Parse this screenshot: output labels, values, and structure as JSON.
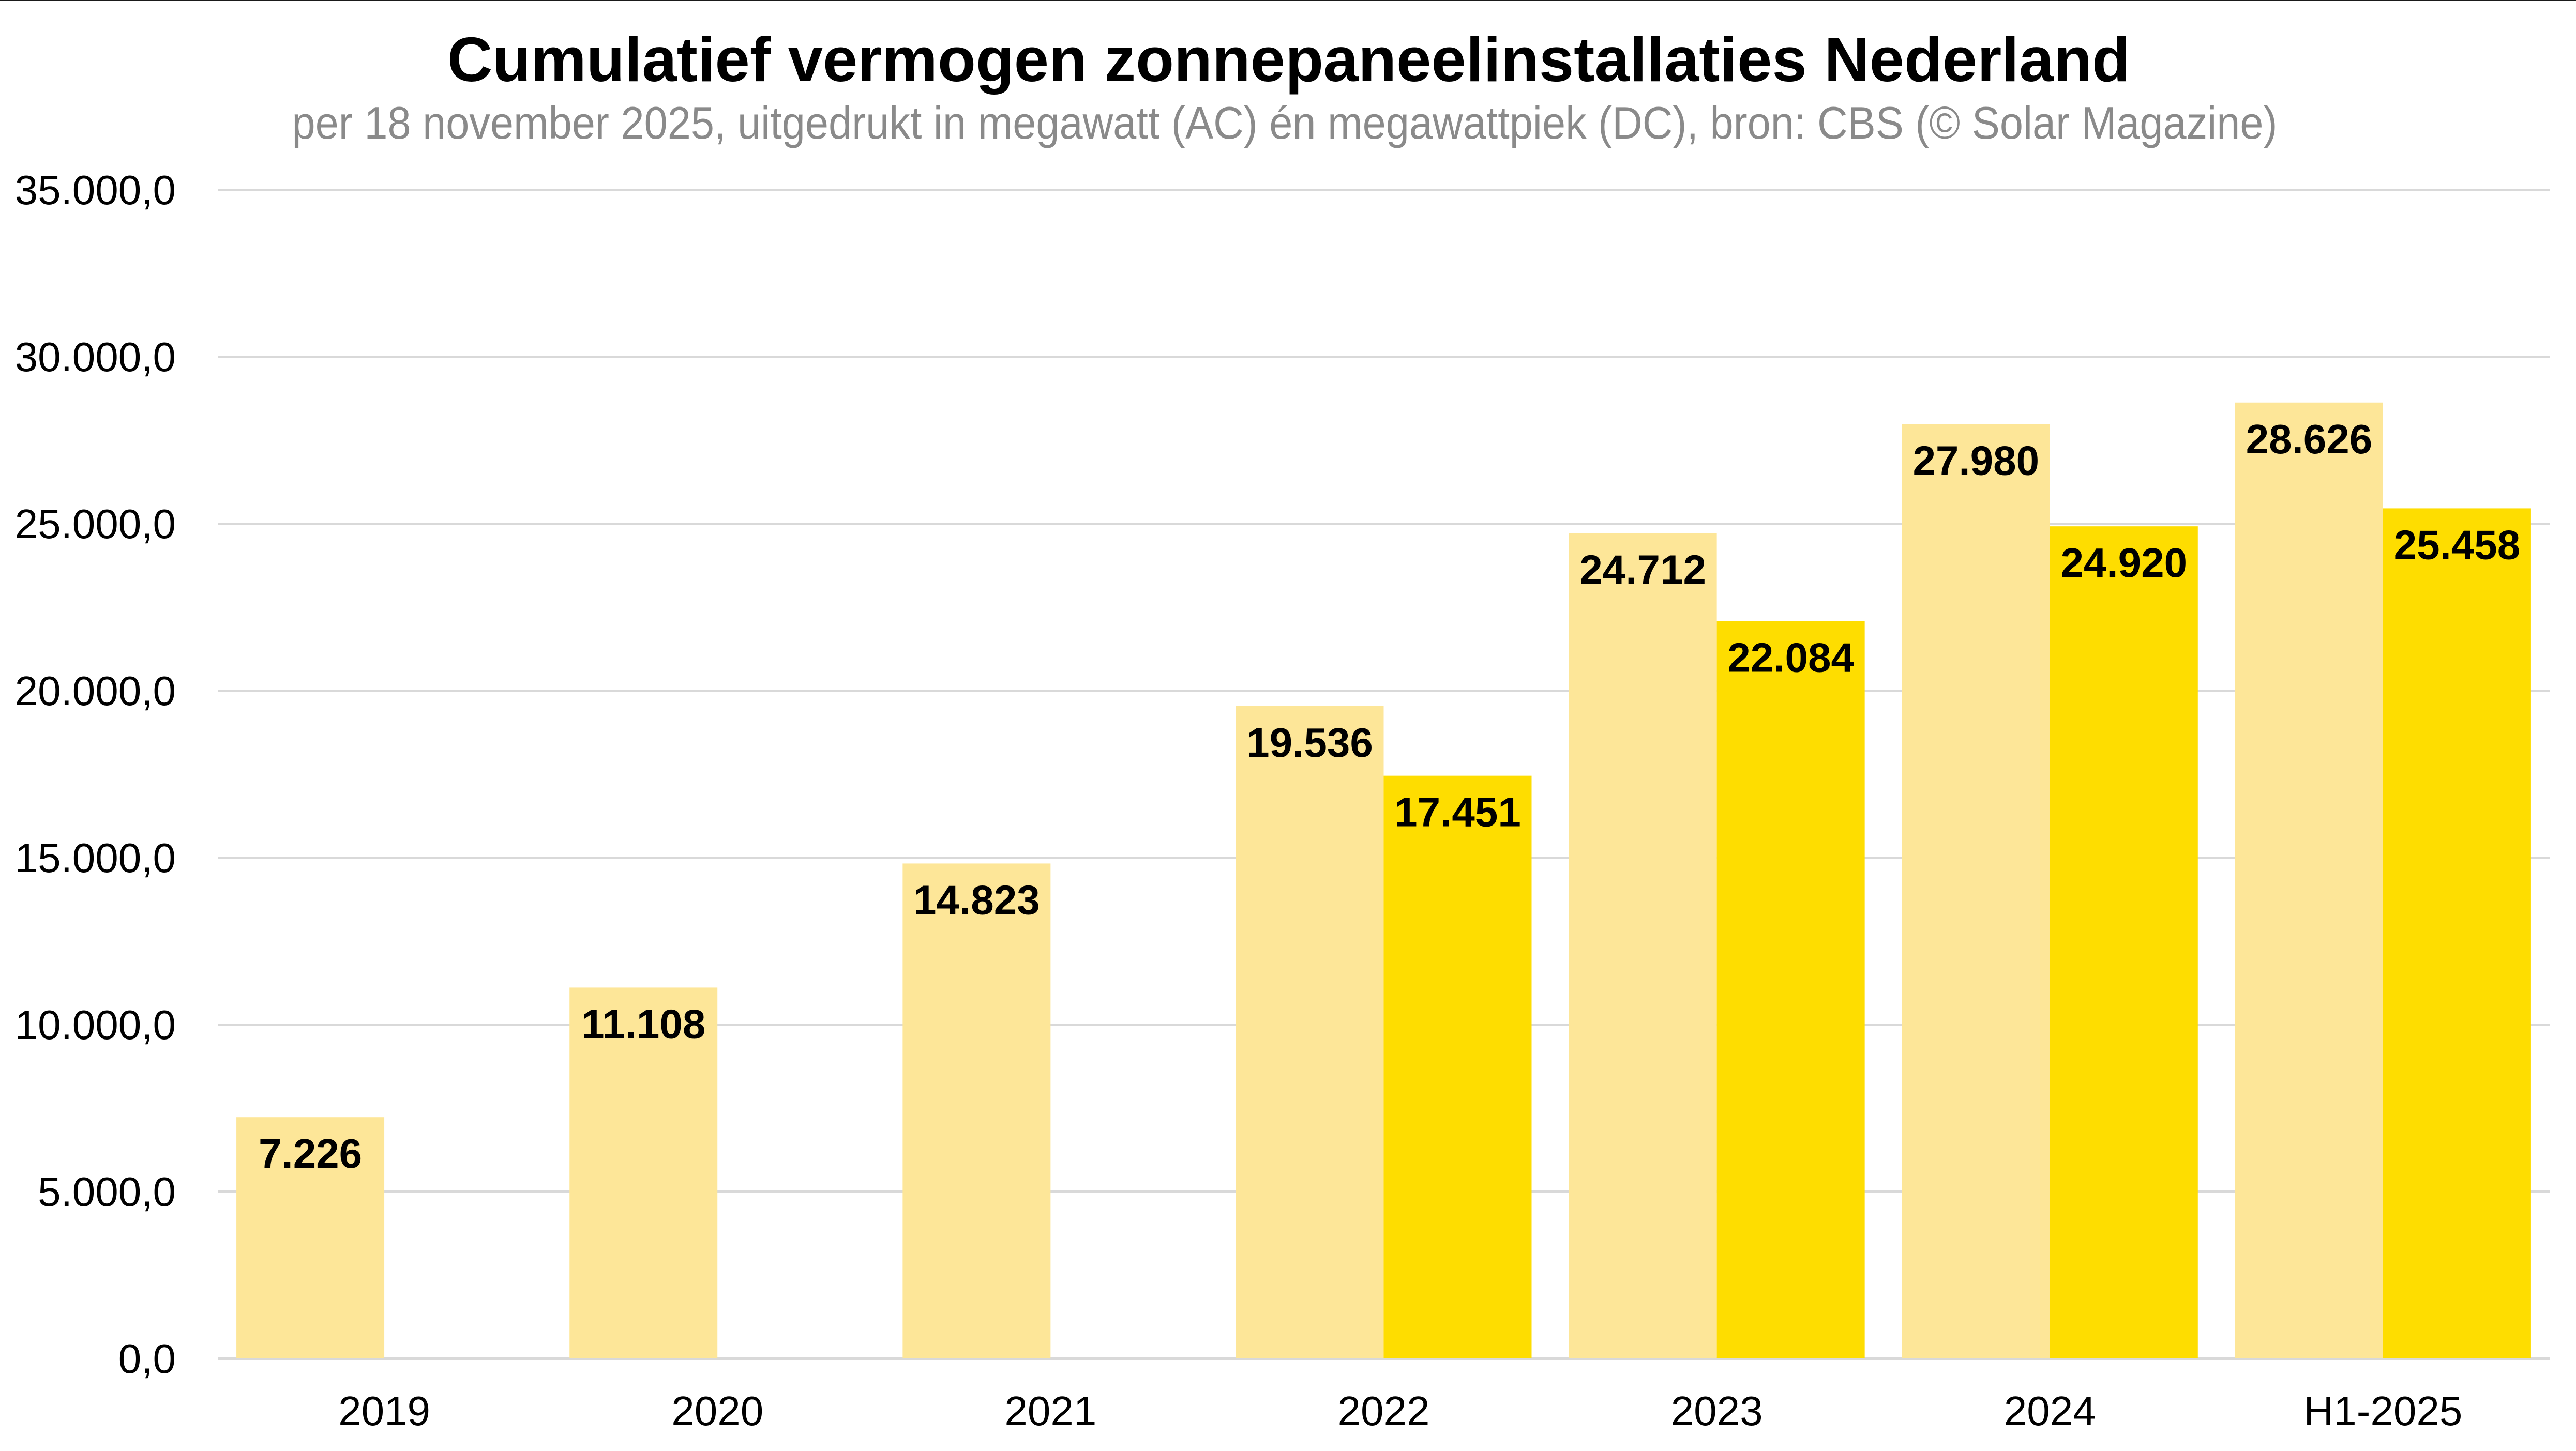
{
  "chart_data": {
    "type": "bar",
    "title": "Cumulatief vermogen zonnepaneelinstallaties Nederland",
    "subtitle": "per 18 november 2025, uitgedrukt in megawatt (AC) én megawattpiek (DC), bron: CBS (© Solar Magazine)",
    "xlabel": "",
    "ylabel": "",
    "categories": [
      "2019",
      "2020",
      "2021",
      "2022",
      "2023",
      "2024",
      "H1-2025"
    ],
    "series": [
      {
        "color": "#fde698",
        "values": [
          7226,
          11108,
          14823,
          19536,
          24712,
          27980,
          28626
        ],
        "labels": [
          "7.226",
          "11.108",
          "14.823",
          "19.536",
          "24.712",
          "27.980",
          "28.626"
        ]
      },
      {
        "color": "#fedd00",
        "values": [
          null,
          null,
          null,
          17451,
          22084,
          24920,
          25458
        ],
        "labels": [
          null,
          null,
          null,
          "17.451",
          "22.084",
          "24.920",
          "25.458"
        ]
      }
    ],
    "ylim": [
      0,
      35000
    ],
    "yticks": [
      0,
      5000,
      10000,
      15000,
      20000,
      25000,
      30000,
      35000
    ],
    "ytick_labels": [
      "0,0",
      "5.000,0",
      "10.000,0",
      "15.000,0",
      "20.000,0",
      "25.000,0",
      "30.000,0",
      "35.000,0"
    ],
    "grid": true,
    "gridline_color": "#d9d9d9",
    "legend": "none"
  }
}
